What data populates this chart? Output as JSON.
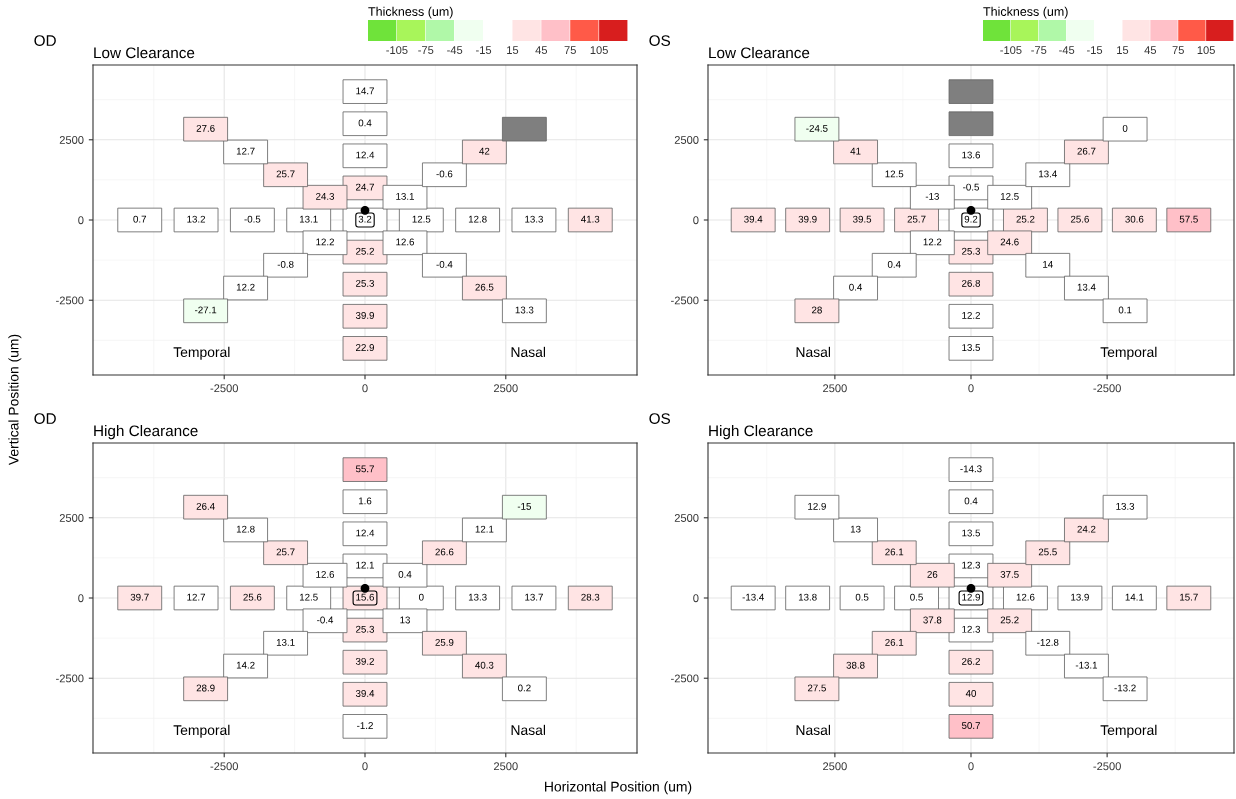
{
  "chart_data": [
    {
      "type": "scatter",
      "title": "OD",
      "subtitle": "Low Clearance",
      "ylabel": "Vertical Position (um)",
      "xlim": [
        -4830,
        4830
      ],
      "ylim": [
        -4830,
        4830
      ],
      "xticks": [
        -2500,
        0,
        2500
      ],
      "yticks": [
        -2500,
        0,
        2500
      ],
      "grid": true,
      "marker": "square",
      "clabel": "Thickness (um)",
      "clim": [
        -135,
        135
      ],
      "cticks": [
        -105,
        -75,
        -45,
        -15,
        15,
        45,
        75,
        105
      ],
      "annotations": [
        "Temporal",
        "Nasal",
        {
          "text": "0.7",
          "x": -4000,
          "y": 0
        },
        {
          "text": "13.2",
          "x": -3000,
          "y": 0
        },
        {
          "text": "-0.5",
          "x": -2000,
          "y": 0
        },
        {
          "text": "13.1",
          "x": -1000,
          "y": 0
        },
        {
          "text": "3.2",
          "x": 0,
          "y": 0
        },
        {
          "text": "12.5",
          "x": 1000,
          "y": 0
        },
        {
          "text": "12.8",
          "x": 2000,
          "y": 0
        },
        {
          "text": "13.3",
          "x": 3000,
          "y": 0
        },
        {
          "text": "41.3",
          "x": 4000,
          "y": 0
        },
        {
          "text": "24.7",
          "x": 0,
          "y": 1000
        },
        {
          "text": "12.4",
          "x": 0,
          "y": 2000
        },
        {
          "text": "0.4",
          "x": 0,
          "y": 3000
        },
        {
          "text": "14.7",
          "x": 0,
          "y": 4000
        },
        {
          "text": "25.2",
          "x": 0,
          "y": -1000
        },
        {
          "text": "25.3",
          "x": 0,
          "y": -2000
        },
        {
          "text": "39.9",
          "x": 0,
          "y": -3000
        },
        {
          "text": "22.9",
          "x": 0,
          "y": -4000
        },
        {
          "text": "24.3",
          "x": -710,
          "y": 710
        },
        {
          "text": "25.7",
          "x": -1410,
          "y": 1410
        },
        {
          "text": "12.7",
          "x": -2120,
          "y": 2120
        },
        {
          "text": "27.6",
          "x": -2830,
          "y": 2830
        },
        {
          "text": "13.1",
          "x": 710,
          "y": 710
        },
        {
          "text": "-0.6",
          "x": 1410,
          "y": 1410
        },
        {
          "text": "42",
          "x": 2120,
          "y": 2120
        },
        {
          "text": "12.2",
          "x": -710,
          "y": -710
        },
        {
          "text": "-0.8",
          "x": -1410,
          "y": -1410
        },
        {
          "text": "12.2",
          "x": -2120,
          "y": -2120
        },
        {
          "text": "-27.1",
          "x": -2830,
          "y": -2830
        },
        {
          "text": "12.6",
          "x": 710,
          "y": -710
        },
        {
          "text": "-0.4",
          "x": 1410,
          "y": -1410
        },
        {
          "text": "26.5",
          "x": 2120,
          "y": -2120
        },
        {
          "text": "13.3",
          "x": 2830,
          "y": -2830
        }
      ],
      "series": [
        {
          "x": [
            -4000,
            -3000,
            -2000,
            -1000,
            0,
            1000,
            2000,
            3000,
            4000,
            0,
            0,
            0,
            0,
            0,
            0,
            0,
            0,
            -710,
            -1410,
            -2120,
            -2830,
            710,
            1410,
            2120,
            -710,
            -1410,
            -2120,
            -2830,
            710,
            1410,
            2120,
            2830
          ],
          "values": [
            0,
            0,
            0,
            0,
            0,
            0,
            0,
            0,
            0,
            1000,
            2000,
            3000,
            4000,
            -1000,
            -2000,
            -3000,
            -4000,
            710,
            1410,
            2120,
            2830,
            710,
            1410,
            2120,
            -710,
            -1410,
            -2120,
            -2830,
            -710,
            -1410,
            -2120,
            -2830
          ],
          "colors": [
            "#ffffff",
            "#ffffff",
            "#ffffff",
            "#ffffff",
            "#ffffff",
            "#ffffff",
            "#ffffff",
            "#ffffff",
            "#ffe4e4",
            "#ffe4e4",
            "#ffffff",
            "#ffffff",
            "#ffffff",
            "#ffe4e4",
            "#ffe4e4",
            "#ffe4e4",
            "#ffe4e4",
            "#ffe4e4",
            "#ffe4e4",
            "#ffffff",
            "#ffe4e4",
            "#ffffff",
            "#ffffff",
            "#ffe4e4",
            "#ffffff",
            "#ffffff",
            "#ffffff",
            "#f0fff0",
            "#ffffff",
            "#ffffff",
            "#ffe4e4",
            "#ffffff"
          ]
        },
        {
          "color": "#7f7f7f",
          "x": [
            2830
          ],
          "values": [
            2830
          ]
        },
        {
          "marker": "circle",
          "color": "#000000",
          "x": [
            0
          ],
          "values": [
            300
          ]
        }
      ]
    },
    {
      "type": "scatter",
      "title": "OS",
      "subtitle": "Low Clearance",
      "xlim": [
        4830,
        -4830
      ],
      "ylim": [
        -4830,
        4830
      ],
      "xticks": [
        2500,
        0,
        -2500
      ],
      "yticks": [
        -2500,
        0,
        2500
      ],
      "grid": true,
      "marker": "square",
      "clabel": "Thickness (um)",
      "clim": [
        -135,
        135
      ],
      "cticks": [
        -105,
        -75,
        -45,
        -15,
        15,
        45,
        75,
        105
      ],
      "annotations": [
        "Nasal",
        "Temporal",
        {
          "text": "57.5",
          "x": -4000,
          "y": 0
        },
        {
          "text": "30.6",
          "x": -3000,
          "y": 0
        },
        {
          "text": "25.6",
          "x": -2000,
          "y": 0
        },
        {
          "text": "25.2",
          "x": -1000,
          "y": 0
        },
        {
          "text": "9.2",
          "x": 0,
          "y": 0
        },
        {
          "text": "25.7",
          "x": 1000,
          "y": 0
        },
        {
          "text": "39.5",
          "x": 2000,
          "y": 0
        },
        {
          "text": "39.9",
          "x": 3000,
          "y": 0
        },
        {
          "text": "39.4",
          "x": 4000,
          "y": 0
        },
        {
          "text": "-0.5",
          "x": 0,
          "y": 1000
        },
        {
          "text": "13.6",
          "x": 0,
          "y": 2000
        },
        {
          "text": "25.3",
          "x": 0,
          "y": -1000
        },
        {
          "text": "26.8",
          "x": 0,
          "y": -2000
        },
        {
          "text": "12.2",
          "x": 0,
          "y": -3000
        },
        {
          "text": "13.5",
          "x": 0,
          "y": -4000
        },
        {
          "text": "12.5",
          "x": -710,
          "y": 710
        },
        {
          "text": "13.4",
          "x": -1410,
          "y": 1410
        },
        {
          "text": "26.7",
          "x": -2120,
          "y": 2120
        },
        {
          "text": "0",
          "x": -2830,
          "y": 2830
        },
        {
          "text": "-13",
          "x": 710,
          "y": 710
        },
        {
          "text": "12.5",
          "x": 1410,
          "y": 1410
        },
        {
          "text": "41",
          "x": 2120,
          "y": 2120
        },
        {
          "text": "-24.5",
          "x": 2830,
          "y": 2830
        },
        {
          "text": "24.6",
          "x": -710,
          "y": -710
        },
        {
          "text": "14",
          "x": -1410,
          "y": -1410
        },
        {
          "text": "13.4",
          "x": -2120,
          "y": -2120
        },
        {
          "text": "0.1",
          "x": -2830,
          "y": -2830
        },
        {
          "text": "12.2",
          "x": 710,
          "y": -710
        },
        {
          "text": "0.4",
          "x": 1410,
          "y": -1410
        },
        {
          "text": "0.4",
          "x": 2120,
          "y": -2120
        },
        {
          "text": "28",
          "x": 2830,
          "y": -2830
        }
      ],
      "series": [
        {
          "x": [
            -4000,
            -3000,
            -2000,
            -1000,
            0,
            1000,
            2000,
            3000,
            4000,
            0,
            0,
            0,
            0,
            0,
            0,
            -710,
            -1410,
            -2120,
            -2830,
            710,
            1410,
            2120,
            2830,
            -710,
            -1410,
            -2120,
            -2830,
            710,
            1410,
            2120,
            2830
          ],
          "values": [
            0,
            0,
            0,
            0,
            0,
            0,
            0,
            0,
            0,
            1000,
            2000,
            -1000,
            -2000,
            -3000,
            -4000,
            710,
            1410,
            2120,
            2830,
            710,
            1410,
            2120,
            2830,
            -710,
            -1410,
            -2120,
            -2830,
            -710,
            -1410,
            -2120,
            -2830
          ],
          "colors": [
            "#ffc0c8",
            "#ffe4e4",
            "#ffe4e4",
            "#ffe4e4",
            "#ffffff",
            "#ffe4e4",
            "#ffe4e4",
            "#ffe4e4",
            "#ffe4e4",
            "#ffffff",
            "#ffffff",
            "#ffe4e4",
            "#ffe4e4",
            "#ffffff",
            "#ffffff",
            "#ffffff",
            "#ffffff",
            "#ffe4e4",
            "#ffffff",
            "#ffffff",
            "#ffffff",
            "#ffe4e4",
            "#f0fff0",
            "#ffe4e4",
            "#ffffff",
            "#ffffff",
            "#ffffff",
            "#ffffff",
            "#ffffff",
            "#ffffff",
            "#ffe4e4"
          ]
        },
        {
          "color": "#7f7f7f",
          "x": [
            0,
            0
          ],
          "values": [
            3000,
            4000
          ]
        },
        {
          "marker": "circle",
          "color": "#000000",
          "x": [
            0
          ],
          "values": [
            300
          ]
        }
      ]
    },
    {
      "type": "scatter",
      "title": "OD",
      "subtitle": "High Clearance",
      "xlabel": "Horizontal Position (um)",
      "xlim": [
        -4830,
        4830
      ],
      "ylim": [
        -4830,
        4830
      ],
      "xticks": [
        -2500,
        0,
        2500
      ],
      "yticks": [
        -2500,
        0,
        2500
      ],
      "grid": true,
      "marker": "square",
      "annotations": [
        "Temporal",
        "Nasal",
        {
          "text": "39.7",
          "x": -4000,
          "y": 0
        },
        {
          "text": "12.7",
          "x": -3000,
          "y": 0
        },
        {
          "text": "25.6",
          "x": -2000,
          "y": 0
        },
        {
          "text": "12.5",
          "x": -1000,
          "y": 0
        },
        {
          "text": "15.6",
          "x": 0,
          "y": 0
        },
        {
          "text": "0",
          "x": 1000,
          "y": 0
        },
        {
          "text": "13.3",
          "x": 2000,
          "y": 0
        },
        {
          "text": "13.7",
          "x": 3000,
          "y": 0
        },
        {
          "text": "28.3",
          "x": 4000,
          "y": 0
        },
        {
          "text": "12.1",
          "x": 0,
          "y": 1000
        },
        {
          "text": "12.4",
          "x": 0,
          "y": 2000
        },
        {
          "text": "1.6",
          "x": 0,
          "y": 3000
        },
        {
          "text": "55.7",
          "x": 0,
          "y": 4000
        },
        {
          "text": "25.3",
          "x": 0,
          "y": -1000
        },
        {
          "text": "39.2",
          "x": 0,
          "y": -2000
        },
        {
          "text": "39.4",
          "x": 0,
          "y": -3000
        },
        {
          "text": "-1.2",
          "x": 0,
          "y": -4000
        },
        {
          "text": "12.6",
          "x": -710,
          "y": 710
        },
        {
          "text": "25.7",
          "x": -1410,
          "y": 1410
        },
        {
          "text": "12.8",
          "x": -2120,
          "y": 2120
        },
        {
          "text": "26.4",
          "x": -2830,
          "y": 2830
        },
        {
          "text": "0.4",
          "x": 710,
          "y": 710
        },
        {
          "text": "26.6",
          "x": 1410,
          "y": 1410
        },
        {
          "text": "12.1",
          "x": 2120,
          "y": 2120
        },
        {
          "text": "-15",
          "x": 2830,
          "y": 2830
        },
        {
          "text": "-0.4",
          "x": -710,
          "y": -710
        },
        {
          "text": "13.1",
          "x": -1410,
          "y": -1410
        },
        {
          "text": "14.2",
          "x": -2120,
          "y": -2120
        },
        {
          "text": "28.9",
          "x": -2830,
          "y": -2830
        },
        {
          "text": "13",
          "x": 710,
          "y": -710
        },
        {
          "text": "25.9",
          "x": 1410,
          "y": -1410
        },
        {
          "text": "40.3",
          "x": 2120,
          "y": -2120
        },
        {
          "text": "0.2",
          "x": 2830,
          "y": -2830
        }
      ],
      "series": [
        {
          "x": [
            -4000,
            -3000,
            -2000,
            -1000,
            0,
            1000,
            2000,
            3000,
            4000,
            0,
            0,
            0,
            0,
            0,
            0,
            0,
            0,
            -710,
            -1410,
            -2120,
            -2830,
            710,
            1410,
            2120,
            2830,
            -710,
            -1410,
            -2120,
            -2830,
            710,
            1410,
            2120,
            2830
          ],
          "values": [
            0,
            0,
            0,
            0,
            0,
            0,
            0,
            0,
            0,
            1000,
            2000,
            3000,
            4000,
            -1000,
            -2000,
            -3000,
            -4000,
            710,
            1410,
            2120,
            2830,
            710,
            1410,
            2120,
            2830,
            -710,
            -1410,
            -2120,
            -2830,
            -710,
            -1410,
            -2120,
            -2830
          ],
          "colors": [
            "#ffe4e4",
            "#ffffff",
            "#ffe4e4",
            "#ffffff",
            "#ffe4e4",
            "#ffffff",
            "#ffffff",
            "#ffffff",
            "#ffe4e4",
            "#ffffff",
            "#ffffff",
            "#ffffff",
            "#ffc0c8",
            "#ffe4e4",
            "#ffe4e4",
            "#ffe4e4",
            "#ffffff",
            "#ffffff",
            "#ffe4e4",
            "#ffffff",
            "#ffe4e4",
            "#ffffff",
            "#ffe4e4",
            "#ffffff",
            "#f0fff0",
            "#ffffff",
            "#ffffff",
            "#ffffff",
            "#ffe4e4",
            "#ffffff",
            "#ffe4e4",
            "#ffe4e4",
            "#ffffff"
          ]
        },
        {
          "marker": "circle",
          "color": "#000000",
          "x": [
            0
          ],
          "values": [
            300
          ]
        }
      ]
    },
    {
      "type": "scatter",
      "title": "OS",
      "subtitle": "High Clearance",
      "xlim": [
        4830,
        -4830
      ],
      "ylim": [
        -4830,
        4830
      ],
      "xticks": [
        2500,
        0,
        -2500
      ],
      "yticks": [
        -2500,
        0,
        2500
      ],
      "grid": true,
      "marker": "square",
      "annotations": [
        "Nasal",
        "Temporal",
        {
          "text": "15.7",
          "x": -4000,
          "y": 0
        },
        {
          "text": "14.1",
          "x": -3000,
          "y": 0
        },
        {
          "text": "13.9",
          "x": -2000,
          "y": 0
        },
        {
          "text": "12.6",
          "x": -1000,
          "y": 0
        },
        {
          "text": "12.9",
          "x": 0,
          "y": 0
        },
        {
          "text": "0.5",
          "x": 1000,
          "y": 0
        },
        {
          "text": "0.5",
          "x": 2000,
          "y": 0
        },
        {
          "text": "13.8",
          "x": 3000,
          "y": 0
        },
        {
          "text": "-13.4",
          "x": 4000,
          "y": 0
        },
        {
          "text": "12.3",
          "x": 0,
          "y": 1000
        },
        {
          "text": "13.5",
          "x": 0,
          "y": 2000
        },
        {
          "text": "0.4",
          "x": 0,
          "y": 3000
        },
        {
          "text": "-14.3",
          "x": 0,
          "y": 4000
        },
        {
          "text": "12.3",
          "x": 0,
          "y": -1000
        },
        {
          "text": "26.2",
          "x": 0,
          "y": -2000
        },
        {
          "text": "40",
          "x": 0,
          "y": -3000
        },
        {
          "text": "50.7",
          "x": 0,
          "y": -4000
        },
        {
          "text": "37.5",
          "x": -710,
          "y": 710
        },
        {
          "text": "25.5",
          "x": -1410,
          "y": 1410
        },
        {
          "text": "24.2",
          "x": -2120,
          "y": 2120
        },
        {
          "text": "13.3",
          "x": -2830,
          "y": 2830
        },
        {
          "text": "26",
          "x": 710,
          "y": 710
        },
        {
          "text": "26.1",
          "x": 1410,
          "y": 1410
        },
        {
          "text": "13",
          "x": 2120,
          "y": 2120
        },
        {
          "text": "12.9",
          "x": 2830,
          "y": 2830
        },
        {
          "text": "25.2",
          "x": -710,
          "y": -710
        },
        {
          "text": "-12.8",
          "x": -1410,
          "y": -1410
        },
        {
          "text": "-13.1",
          "x": -2120,
          "y": -2120
        },
        {
          "text": "-13.2",
          "x": -2830,
          "y": -2830
        },
        {
          "text": "37.8",
          "x": 710,
          "y": -710
        },
        {
          "text": "26.1",
          "x": 1410,
          "y": -1410
        },
        {
          "text": "38.8",
          "x": 2120,
          "y": -2120
        },
        {
          "text": "27.5",
          "x": 2830,
          "y": -2830
        }
      ],
      "series": [
        {
          "x": [
            -4000,
            -3000,
            -2000,
            -1000,
            0,
            1000,
            2000,
            3000,
            4000,
            0,
            0,
            0,
            0,
            0,
            0,
            0,
            0,
            -710,
            -1410,
            -2120,
            -2830,
            710,
            1410,
            2120,
            2830,
            -710,
            -1410,
            -2120,
            -2830,
            710,
            1410,
            2120,
            2830
          ],
          "values": [
            0,
            0,
            0,
            0,
            0,
            0,
            0,
            0,
            0,
            1000,
            2000,
            3000,
            4000,
            -1000,
            -2000,
            -3000,
            -4000,
            710,
            1410,
            2120,
            2830,
            710,
            1410,
            2120,
            2830,
            -710,
            -1410,
            -2120,
            -2830,
            -710,
            -1410,
            -2120,
            -2830
          ],
          "colors": [
            "#ffe4e4",
            "#ffffff",
            "#ffffff",
            "#ffffff",
            "#ffffff",
            "#ffffff",
            "#ffffff",
            "#ffffff",
            "#ffffff",
            "#ffffff",
            "#ffffff",
            "#ffffff",
            "#ffffff",
            "#ffffff",
            "#ffe4e4",
            "#ffe4e4",
            "#ffc0c8",
            "#ffe4e4",
            "#ffe4e4",
            "#ffe4e4",
            "#ffffff",
            "#ffe4e4",
            "#ffe4e4",
            "#ffffff",
            "#ffffff",
            "#ffe4e4",
            "#ffffff",
            "#ffffff",
            "#ffffff",
            "#ffe4e4",
            "#ffe4e4",
            "#ffe4e4",
            "#ffe4e4"
          ]
        },
        {
          "marker": "circle",
          "color": "#000000",
          "x": [
            0
          ],
          "values": [
            300
          ]
        }
      ]
    }
  ]
}
